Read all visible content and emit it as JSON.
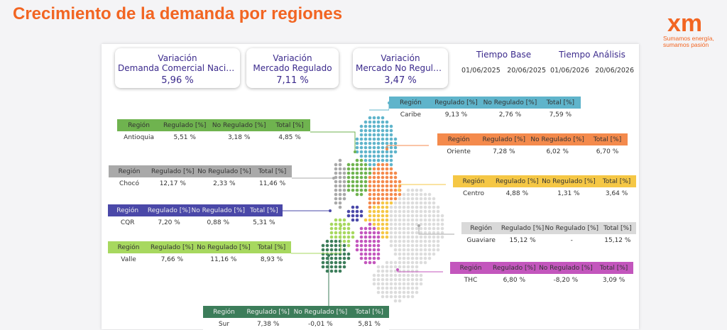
{
  "header": {
    "title": "Crecimiento de la demanda por regiones",
    "logo": "xm",
    "slogan": [
      "Sumamos energía,",
      "sumamos pasión"
    ]
  },
  "kpis": [
    {
      "label": [
        "Variación",
        "Demanda Comercial Nacional"
      ],
      "value": "5,96 %"
    },
    {
      "label": [
        "Variación",
        "Mercado Regulado"
      ],
      "value": "7,11 %"
    },
    {
      "label": [
        "Variación",
        "Mercado No Regulado"
      ],
      "value": "3,47 %"
    }
  ],
  "periods": [
    {
      "label": "Tiempo Base",
      "start": "01/06/2025",
      "end": "20/06/2025"
    },
    {
      "label": "Tiempo Análisis",
      "start": "01/06/2026",
      "end": "20/06/2026"
    }
  ],
  "table_headers": [
    "Región",
    "Regulado [%]",
    "No Regulado [%]",
    "Total [%]"
  ],
  "regions": [
    {
      "name": "Antioquia",
      "values": [
        "5,51 %",
        "3,18 %",
        "4,85 %"
      ]
    },
    {
      "name": "Caribe",
      "values": [
        "9,13 %",
        "2,76 %",
        "7,59 %"
      ]
    },
    {
      "name": "Oriente",
      "values": [
        "7,28 %",
        "6,02 %",
        "6,70 %"
      ]
    },
    {
      "name": "Chocó",
      "values": [
        "12,17 %",
        "2,33 %",
        "11,46 %"
      ]
    },
    {
      "name": "Centro",
      "values": [
        "4,88 %",
        "1,31 %",
        "3,64 %"
      ]
    },
    {
      "name": "CQR",
      "values": [
        "7,20 %",
        "0,88 %",
        "5,31 %"
      ]
    },
    {
      "name": "Guaviare",
      "values": [
        "15,12 %",
        "-",
        "15,12 %"
      ]
    },
    {
      "name": "Valle",
      "values": [
        "7,66 %",
        "11,16 %",
        "8,93 %"
      ]
    },
    {
      "name": "THC",
      "values": [
        "6,80 %",
        "-8,20 %",
        "3,09 %"
      ]
    },
    {
      "name": "Sur",
      "values": [
        "7,38 %",
        "-0,01 %",
        "5,81 %"
      ]
    }
  ]
}
